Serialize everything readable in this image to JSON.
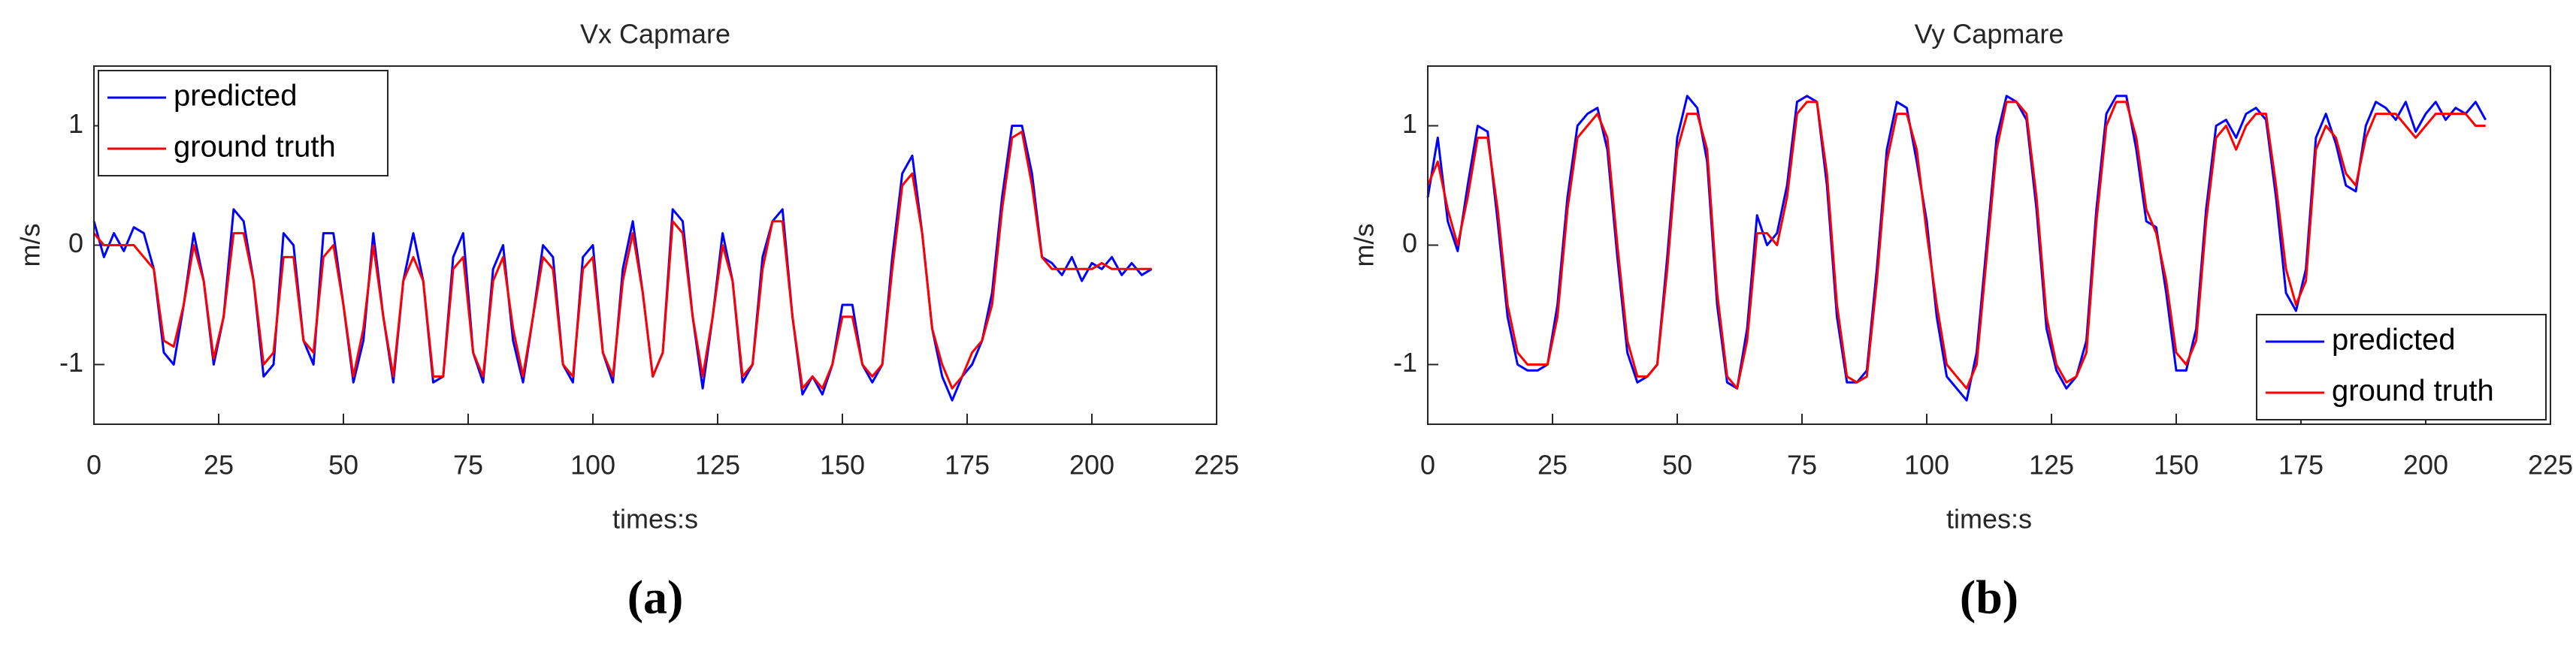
{
  "chart_data": [
    {
      "type": "line",
      "title": "Vx Capmare",
      "xlabel": "times:s",
      "ylabel": "m/s",
      "caption": "(a)",
      "xlim": [
        0,
        225
      ],
      "ylim": [
        -1.5,
        1.5
      ],
      "xticks": [
        0,
        25,
        50,
        75,
        100,
        125,
        150,
        175,
        200,
        225
      ],
      "yticks": [
        -1,
        0,
        1
      ],
      "legend": "upper left",
      "x": [
        0,
        2,
        4,
        6,
        8,
        10,
        12,
        14,
        16,
        18,
        20,
        22,
        24,
        26,
        28,
        30,
        32,
        34,
        36,
        38,
        40,
        42,
        44,
        46,
        48,
        50,
        52,
        54,
        56,
        58,
        60,
        62,
        64,
        66,
        68,
        70,
        72,
        74,
        76,
        78,
        80,
        82,
        84,
        86,
        88,
        90,
        92,
        94,
        96,
        98,
        100,
        102,
        104,
        106,
        108,
        110,
        112,
        114,
        116,
        118,
        120,
        122,
        124,
        126,
        128,
        130,
        132,
        134,
        136,
        138,
        140,
        142,
        144,
        146,
        148,
        150,
        152,
        154,
        156,
        158,
        160,
        162,
        164,
        166,
        168,
        170,
        172,
        174,
        176,
        178,
        180,
        182,
        184,
        186,
        188,
        190,
        192,
        194,
        196,
        198,
        200,
        202,
        204,
        206,
        208,
        210,
        212
      ],
      "series": [
        {
          "name": "predicted",
          "color": "#0000ff",
          "values": [
            0.2,
            -0.1,
            0.1,
            -0.05,
            0.15,
            0.1,
            -0.2,
            -0.9,
            -1.0,
            -0.5,
            0.1,
            -0.3,
            -1.0,
            -0.6,
            0.3,
            0.2,
            -0.3,
            -1.1,
            -1.0,
            0.1,
            0.0,
            -0.8,
            -1.0,
            0.1,
            0.1,
            -0.5,
            -1.15,
            -0.8,
            0.1,
            -0.6,
            -1.15,
            -0.3,
            0.1,
            -0.3,
            -1.15,
            -1.1,
            -0.1,
            0.1,
            -0.9,
            -1.15,
            -0.2,
            0.0,
            -0.8,
            -1.15,
            -0.6,
            0.0,
            -0.1,
            -1.0,
            -1.15,
            -0.1,
            0.0,
            -0.9,
            -1.15,
            -0.2,
            0.2,
            -0.4,
            -1.1,
            -0.9,
            0.3,
            0.2,
            -0.6,
            -1.2,
            -0.6,
            0.1,
            -0.3,
            -1.15,
            -1.0,
            -0.1,
            0.2,
            0.3,
            -0.6,
            -1.25,
            -1.1,
            -1.25,
            -1.0,
            -0.5,
            -0.5,
            -1.0,
            -1.15,
            -1.0,
            -0.1,
            0.6,
            0.75,
            0.1,
            -0.7,
            -1.1,
            -1.3,
            -1.1,
            -1.0,
            -0.8,
            -0.4,
            0.4,
            1.0,
            1.0,
            0.6,
            -0.1,
            -0.15,
            -0.25,
            -0.1,
            -0.3,
            -0.15,
            -0.2,
            -0.1,
            -0.25,
            -0.15,
            -0.25,
            -0.2
          ]
        },
        {
          "name": "ground truth",
          "color": "#ff0000",
          "values": [
            0.1,
            0.0,
            0.0,
            0.0,
            0.0,
            -0.1,
            -0.2,
            -0.8,
            -0.85,
            -0.5,
            0.0,
            -0.3,
            -0.95,
            -0.6,
            0.1,
            0.1,
            -0.3,
            -1.0,
            -0.9,
            -0.1,
            -0.1,
            -0.8,
            -0.9,
            -0.1,
            0.0,
            -0.5,
            -1.1,
            -0.7,
            0.0,
            -0.6,
            -1.1,
            -0.3,
            -0.1,
            -0.3,
            -1.1,
            -1.1,
            -0.2,
            -0.1,
            -0.9,
            -1.1,
            -0.3,
            -0.1,
            -0.7,
            -1.1,
            -0.6,
            -0.1,
            -0.2,
            -1.0,
            -1.1,
            -0.2,
            -0.1,
            -0.9,
            -1.1,
            -0.3,
            0.1,
            -0.4,
            -1.1,
            -0.9,
            0.2,
            0.1,
            -0.6,
            -1.1,
            -0.6,
            0.0,
            -0.3,
            -1.1,
            -1.0,
            -0.2,
            0.2,
            0.2,
            -0.6,
            -1.2,
            -1.1,
            -1.2,
            -1.0,
            -0.6,
            -0.6,
            -1.0,
            -1.1,
            -1.0,
            -0.2,
            0.5,
            0.6,
            0.1,
            -0.7,
            -1.0,
            -1.2,
            -1.1,
            -0.9,
            -0.8,
            -0.5,
            0.3,
            0.9,
            0.95,
            0.5,
            -0.1,
            -0.2,
            -0.2,
            -0.2,
            -0.2,
            -0.2,
            -0.15,
            -0.2,
            -0.2,
            -0.2,
            -0.2,
            -0.2
          ]
        }
      ]
    },
    {
      "type": "line",
      "title": "Vy Capmare",
      "xlabel": "times:s",
      "ylabel": "m/s",
      "caption": "(b)",
      "xlim": [
        0,
        225
      ],
      "ylim": [
        -1.5,
        1.5
      ],
      "xticks": [
        0,
        25,
        50,
        75,
        100,
        125,
        150,
        175,
        200,
        225
      ],
      "yticks": [
        -1,
        0,
        1
      ],
      "legend": "lower right",
      "x": [
        0,
        2,
        4,
        6,
        8,
        10,
        12,
        14,
        16,
        18,
        20,
        22,
        24,
        26,
        28,
        30,
        32,
        34,
        36,
        38,
        40,
        42,
        44,
        46,
        48,
        50,
        52,
        54,
        56,
        58,
        60,
        62,
        64,
        66,
        68,
        70,
        72,
        74,
        76,
        78,
        80,
        82,
        84,
        86,
        88,
        90,
        92,
        94,
        96,
        98,
        100,
        102,
        104,
        106,
        108,
        110,
        112,
        114,
        116,
        118,
        120,
        122,
        124,
        126,
        128,
        130,
        132,
        134,
        136,
        138,
        140,
        142,
        144,
        146,
        148,
        150,
        152,
        154,
        156,
        158,
        160,
        162,
        164,
        166,
        168,
        170,
        172,
        174,
        176,
        178,
        180,
        182,
        184,
        186,
        188,
        190,
        192,
        194,
        196,
        198,
        200,
        202,
        204,
        206,
        208,
        210,
        212
      ],
      "series": [
        {
          "name": "predicted",
          "color": "#0000ff",
          "values": [
            0.4,
            0.9,
            0.2,
            -0.05,
            0.5,
            1.0,
            0.95,
            0.2,
            -0.6,
            -1.0,
            -1.05,
            -1.05,
            -1.0,
            -0.5,
            0.4,
            1.0,
            1.1,
            1.15,
            0.8,
            -0.1,
            -0.9,
            -1.15,
            -1.1,
            -1.0,
            -0.1,
            0.9,
            1.25,
            1.15,
            0.7,
            -0.5,
            -1.15,
            -1.2,
            -0.7,
            0.25,
            0.0,
            0.1,
            0.5,
            1.2,
            1.25,
            1.2,
            0.5,
            -0.6,
            -1.15,
            -1.15,
            -1.05,
            -0.2,
            0.8,
            1.2,
            1.15,
            0.7,
            0.2,
            -0.6,
            -1.1,
            -1.2,
            -1.3,
            -0.9,
            0.0,
            0.9,
            1.25,
            1.2,
            1.05,
            0.3,
            -0.7,
            -1.05,
            -1.2,
            -1.1,
            -0.8,
            0.3,
            1.1,
            1.25,
            1.25,
            0.8,
            0.2,
            0.15,
            -0.4,
            -1.05,
            -1.05,
            -0.7,
            0.3,
            1.0,
            1.05,
            0.9,
            1.1,
            1.15,
            1.05,
            0.4,
            -0.4,
            -0.55,
            -0.2,
            0.9,
            1.1,
            0.85,
            0.5,
            0.45,
            1.0,
            1.2,
            1.15,
            1.05,
            1.2,
            0.95,
            1.1,
            1.2,
            1.05,
            1.15,
            1.1,
            1.2,
            1.05
          ]
        },
        {
          "name": "ground truth",
          "color": "#ff0000",
          "values": [
            0.5,
            0.7,
            0.3,
            0.0,
            0.4,
            0.9,
            0.9,
            0.3,
            -0.5,
            -0.9,
            -1.0,
            -1.0,
            -1.0,
            -0.6,
            0.3,
            0.9,
            1.0,
            1.1,
            0.9,
            0.0,
            -0.8,
            -1.1,
            -1.1,
            -1.0,
            -0.2,
            0.8,
            1.1,
            1.1,
            0.8,
            -0.4,
            -1.1,
            -1.2,
            -0.8,
            0.1,
            0.1,
            0.0,
            0.4,
            1.1,
            1.2,
            1.2,
            0.6,
            -0.5,
            -1.1,
            -1.15,
            -1.1,
            -0.3,
            0.7,
            1.1,
            1.1,
            0.8,
            0.1,
            -0.5,
            -1.0,
            -1.1,
            -1.2,
            -1.0,
            -0.1,
            0.8,
            1.2,
            1.2,
            1.1,
            0.4,
            -0.6,
            -1.0,
            -1.15,
            -1.1,
            -0.9,
            0.2,
            1.0,
            1.2,
            1.2,
            0.9,
            0.3,
            0.1,
            -0.3,
            -0.9,
            -1.0,
            -0.8,
            0.2,
            0.9,
            1.0,
            0.8,
            1.0,
            1.1,
            1.1,
            0.5,
            -0.2,
            -0.5,
            -0.3,
            0.8,
            1.0,
            0.9,
            0.6,
            0.5,
            0.9,
            1.1,
            1.1,
            1.1,
            1.0,
            0.9,
            1.0,
            1.1,
            1.1,
            1.1,
            1.1,
            1.0,
            1.0
          ]
        }
      ]
    }
  ]
}
